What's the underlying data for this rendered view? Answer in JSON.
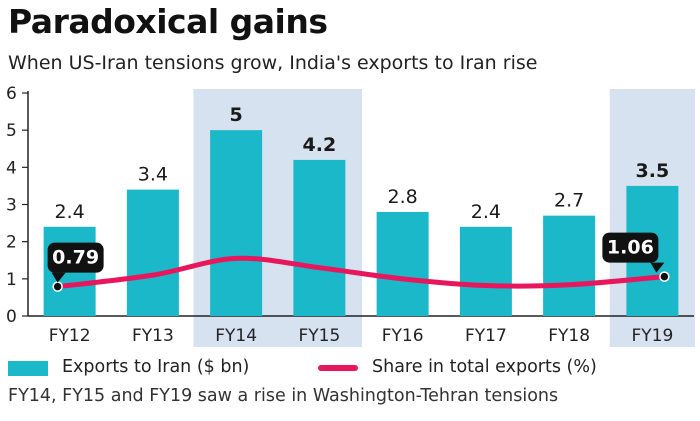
{
  "header": {
    "title": "Paradoxical gains",
    "subtitle": "When US-Iran tensions grow, India's exports to Iran rise"
  },
  "chart_data": {
    "type": "bar",
    "categories": [
      "FY12",
      "FY13",
      "FY14",
      "FY15",
      "FY16",
      "FY17",
      "FY18",
      "FY19"
    ],
    "highlighted_categories": [
      "FY14",
      "FY15",
      "FY19"
    ],
    "ylim": [
      0,
      6
    ],
    "yticks": [
      "0",
      "1",
      "2",
      "3",
      "4",
      "5",
      "6"
    ],
    "grid": false,
    "series": [
      {
        "name": "Exports to Iran ($ bn)",
        "type": "bar",
        "values": [
          2.4,
          3.4,
          5,
          4.2,
          2.8,
          2.4,
          2.7,
          3.5
        ],
        "value_labels": [
          "2.4",
          "3.4",
          "5",
          "4.2",
          "2.8",
          "2.4",
          "2.7",
          "3.5"
        ],
        "color": "#1ab8c8"
      },
      {
        "name": "Share in total exports (%)",
        "type": "line",
        "values": [
          0.79,
          1.1,
          1.55,
          1.3,
          1.0,
          0.82,
          0.84,
          1.06
        ],
        "callouts": [
          {
            "index": 0,
            "label": "0.79"
          },
          {
            "index": 7,
            "label": "1.06"
          }
        ],
        "color": "#e8175d"
      }
    ],
    "highlight_color": "#d6e2ef",
    "legend_position": "bottom-left"
  },
  "legend": {
    "bar_label": "Exports to Iran ($ bn)",
    "line_label": "Share in total exports (%)"
  },
  "footnote": "FY14, FY15 and FY19 saw a rise in Washington-Tehran tensions"
}
